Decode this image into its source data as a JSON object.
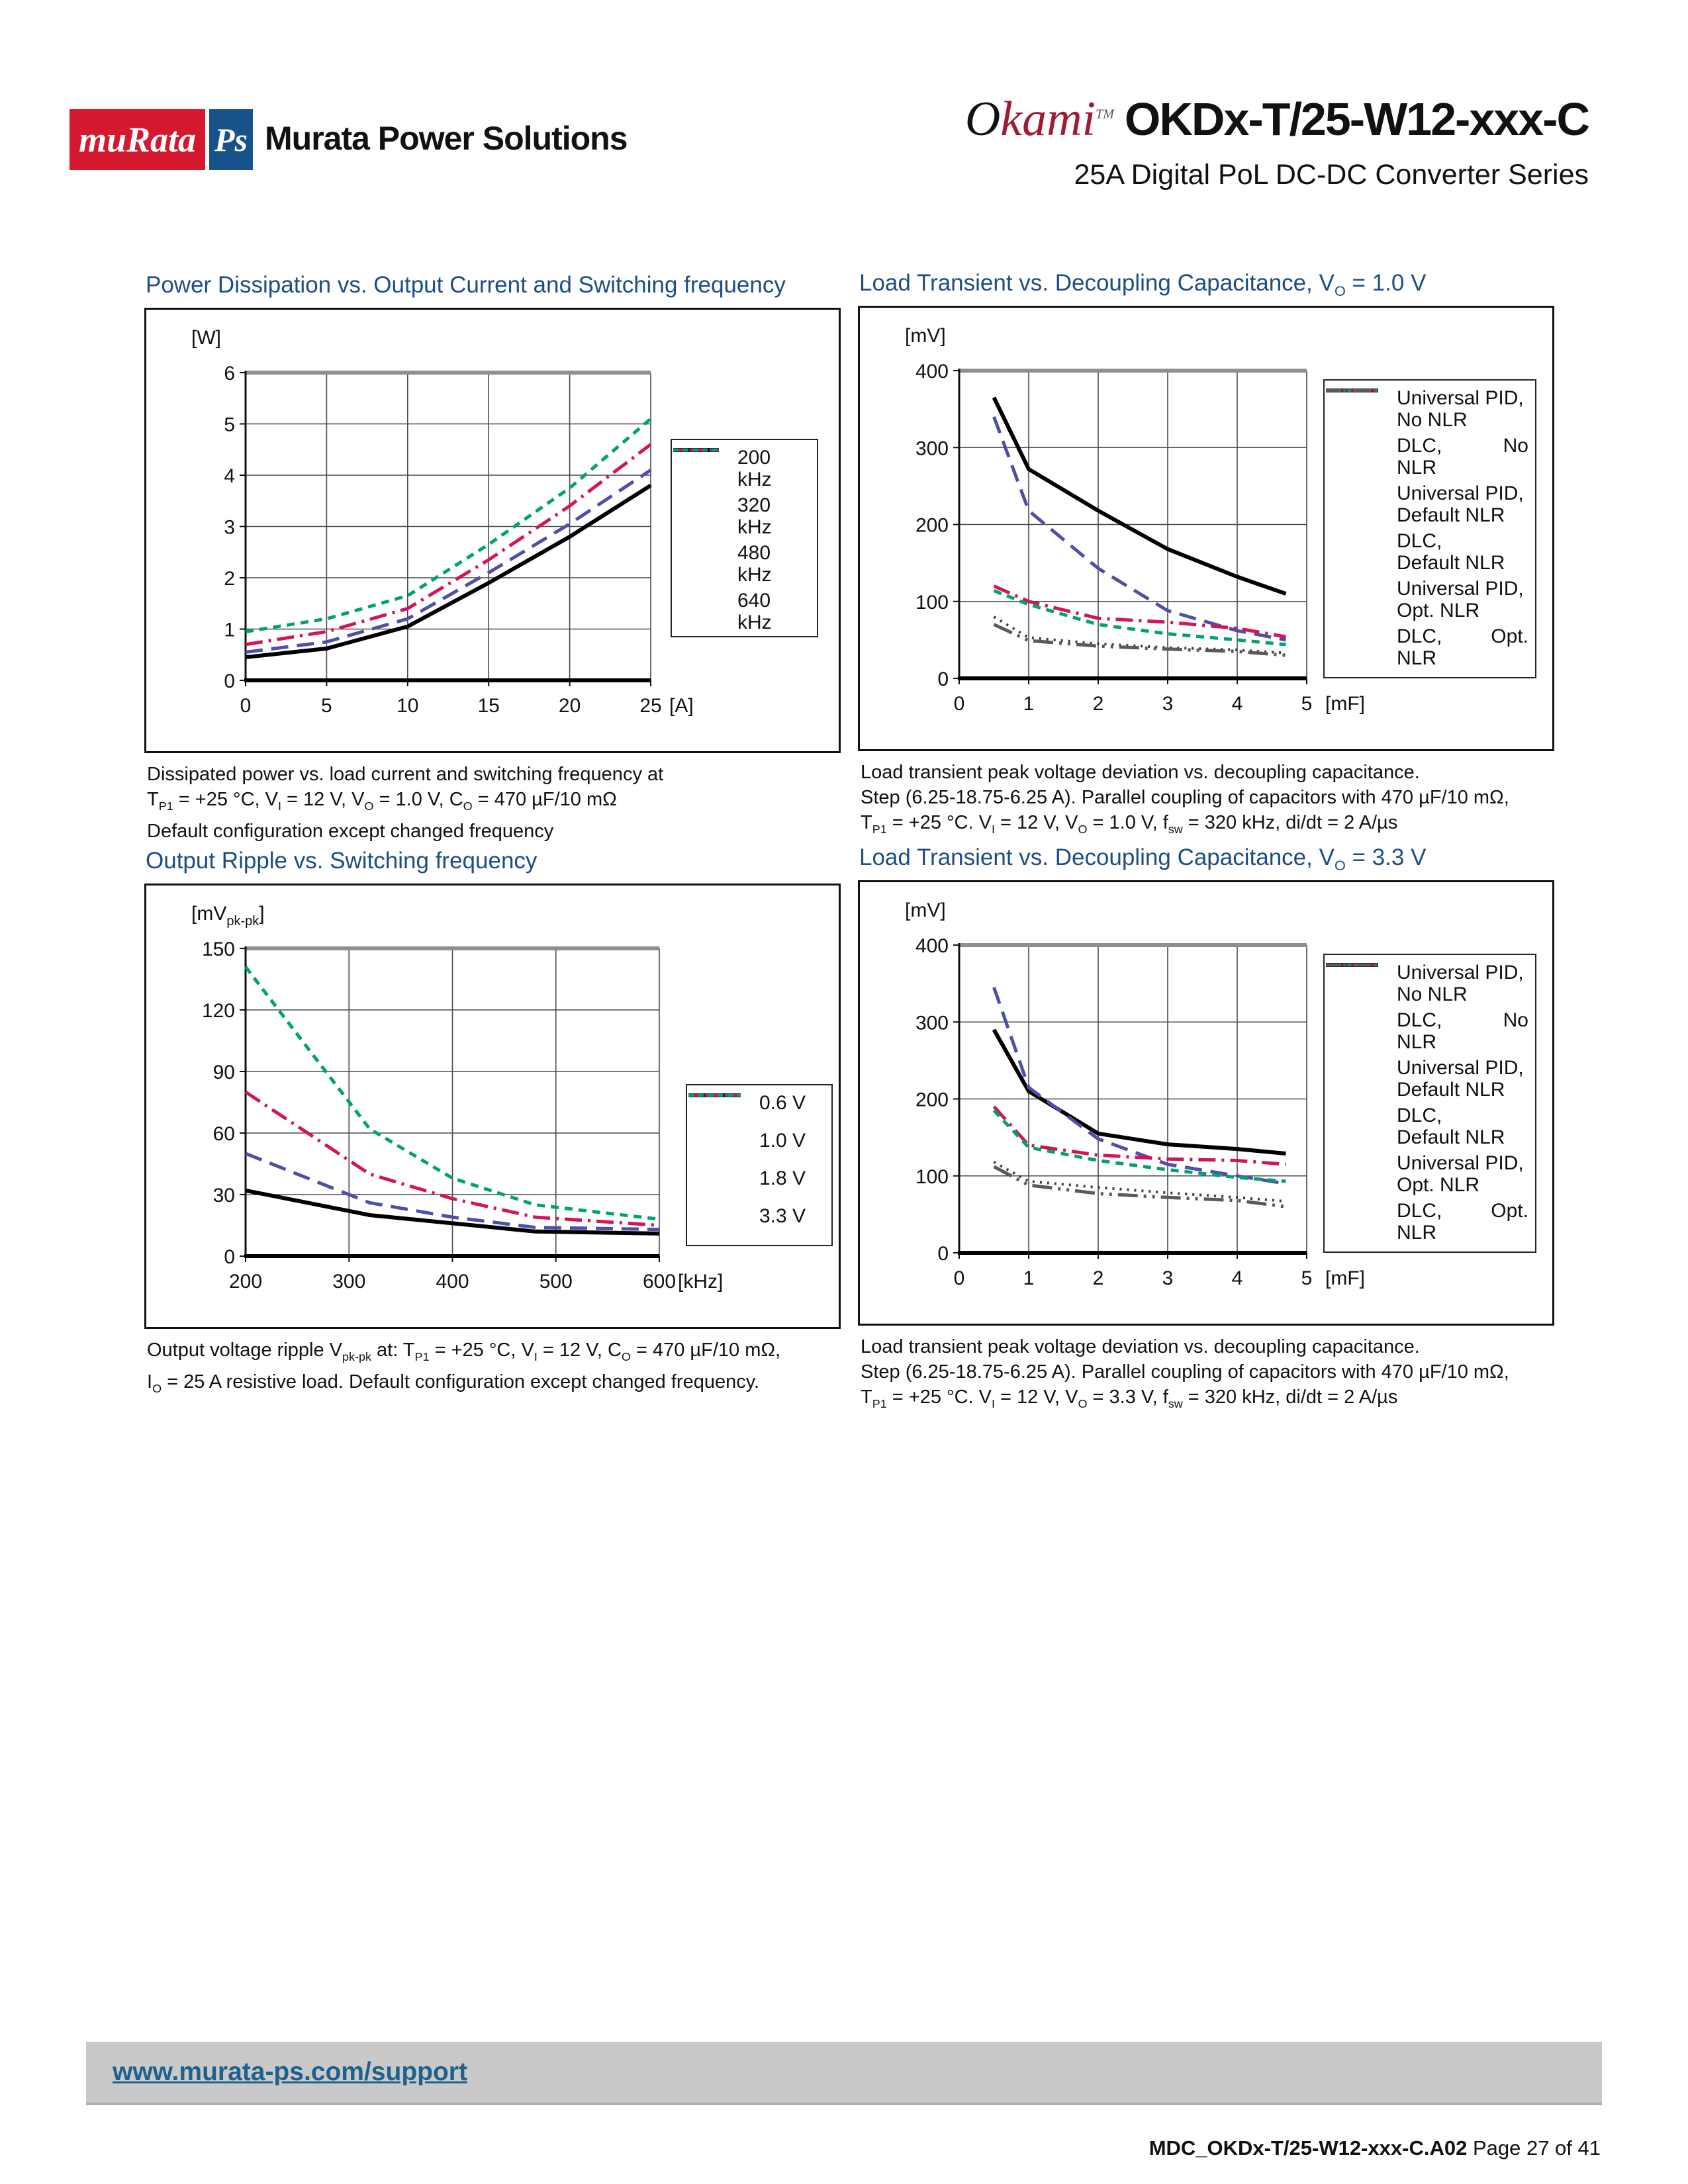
{
  "header": {
    "logo_murata": "muRata",
    "logo_ps": "Ps",
    "company": "Murata Power Solutions",
    "brand_o": "O",
    "brand_rest": "kami",
    "brand_tm": "TM",
    "product": "OKDx-T/25-W12-xxx-C",
    "series": "25A Digital PoL DC-DC Converter Series"
  },
  "footer": {
    "link": "www.murata-ps.com/support",
    "doc": "MDC_OKDx-T/25-W12-xxx-C.A02",
    "page": "Page 27 of 41"
  },
  "line_styles": {
    "solid": {
      "color": "#000000",
      "dash": "",
      "width": 6
    },
    "longdash": {
      "color": "#4f4fa8",
      "dash": "26 13",
      "width": 5
    },
    "dashdot": {
      "color": "#d4145a",
      "dash": "26 9 4 9",
      "width": 5
    },
    "shortdash": {
      "color": "#00a173",
      "dash": "12 9",
      "width": 5
    },
    "dotted": {
      "color": "#3a3a3a",
      "dash": "3 8",
      "width": 4
    },
    "dashdotdot": {
      "color": "#5a5a5a",
      "dash": "30 9 4 9 4 9",
      "width": 5
    }
  },
  "chart_data": [
    {
      "type": "line",
      "title": "Power Dissipation vs. Output Current and Switching frequency",
      "y_unit": "[W]",
      "x_unit": "[A]",
      "xlim": [
        0,
        25
      ],
      "ylim": [
        0,
        6
      ],
      "x_ticks": [
        0,
        5,
        10,
        15,
        20,
        25
      ],
      "y_ticks": [
        0,
        1,
        2,
        3,
        4,
        5,
        6
      ],
      "series": [
        {
          "label_lines": [
            "200",
            "kHz"
          ],
          "style": "solid",
          "x": [
            0,
            5,
            10,
            15,
            20,
            25
          ],
          "y": [
            0.45,
            0.62,
            1.05,
            1.9,
            2.8,
            3.8
          ]
        },
        {
          "label_lines": [
            "320",
            "kHz"
          ],
          "style": "longdash",
          "x": [
            0,
            5,
            10,
            15,
            20,
            25
          ],
          "y": [
            0.55,
            0.75,
            1.2,
            2.1,
            3.05,
            4.1
          ]
        },
        {
          "label_lines": [
            "480",
            "kHz"
          ],
          "style": "dashdot",
          "x": [
            0,
            5,
            10,
            15,
            20,
            25
          ],
          "y": [
            0.7,
            0.95,
            1.4,
            2.35,
            3.4,
            4.6
          ]
        },
        {
          "label_lines": [
            "640",
            "kHz"
          ],
          "style": "shortdash",
          "x": [
            0,
            5,
            10,
            15,
            20,
            25
          ],
          "y": [
            0.95,
            1.2,
            1.65,
            2.65,
            3.75,
            5.1
          ]
        }
      ],
      "caption_lines": [
        "Dissipated power vs. load current and switching frequency at",
        "T~P1~ = +25 °C, V~I~ = 12 V, V~O~ = 1.0 V, C~O~ = 470 µF/10 mΩ",
        "Default configuration except changed frequency"
      ]
    },
    {
      "type": "line",
      "title": "Load Transient vs. Decoupling Capacitance, V~O~ = 1.0 V",
      "y_unit": "[mV]",
      "x_unit": "[mF]",
      "xlim": [
        0,
        5
      ],
      "ylim": [
        0,
        400
      ],
      "x_ticks": [
        0,
        1,
        2,
        3,
        4,
        5
      ],
      "y_ticks": [
        0,
        100,
        200,
        300,
        400
      ],
      "series": [
        {
          "label_lines": [
            "Universal PID,",
            "No NLR"
          ],
          "style": "solid",
          "x": [
            0.5,
            1,
            2,
            3,
            4,
            4.7
          ],
          "y": [
            365,
            272,
            218,
            168,
            132,
            110
          ]
        },
        {
          "label_lines": [
            "DLC,|No",
            "NLR"
          ],
          "style": "longdash",
          "x": [
            0.5,
            1,
            2,
            3,
            4,
            4.7
          ],
          "y": [
            340,
            218,
            143,
            88,
            62,
            50
          ]
        },
        {
          "label_lines": [
            "Universal PID,",
            "Default NLR"
          ],
          "style": "dashdot",
          "x": [
            0.5,
            1,
            2,
            3,
            4,
            4.7
          ],
          "y": [
            120,
            100,
            78,
            73,
            65,
            54
          ]
        },
        {
          "label_lines": [
            "DLC,",
            "Default NLR"
          ],
          "style": "shortdash",
          "x": [
            0.5,
            1,
            2,
            3,
            4,
            4.7
          ],
          "y": [
            114,
            96,
            70,
            58,
            50,
            44
          ]
        },
        {
          "label_lines": [
            "Universal PID,",
            "Opt. NLR"
          ],
          "style": "dotted",
          "x": [
            0.5,
            1,
            2,
            3,
            4,
            4.7
          ],
          "y": [
            80,
            53,
            45,
            40,
            37,
            33
          ]
        },
        {
          "label_lines": [
            "DLC,|Opt.",
            "NLR"
          ],
          "style": "dashdotdot",
          "x": [
            0.5,
            1,
            2,
            3,
            4,
            4.7
          ],
          "y": [
            70,
            49,
            42,
            38,
            35,
            30
          ]
        }
      ],
      "caption_lines": [
        "Load transient peak voltage deviation vs. decoupling capacitance.",
        "Step (6.25-18.75-6.25 A). Parallel coupling of capacitors with 470 µF/10 mΩ,",
        "T~P1~ = +25 °C. V~I~ = 12 V, V~O~ = 1.0 V, f~sw~ = 320 kHz, di/dt = 2 A/µs"
      ]
    },
    {
      "type": "line",
      "title": "Output Ripple vs. Switching frequency",
      "y_unit": "[mV~pk-pk~]",
      "x_unit": "[kHz]",
      "xlim": [
        200,
        600
      ],
      "ylim": [
        0,
        150
      ],
      "x_ticks": [
        200,
        300,
        400,
        500,
        600
      ],
      "y_ticks": [
        0,
        30,
        60,
        90,
        120,
        150
      ],
      "series": [
        {
          "label_lines": [
            "0.6 V"
          ],
          "style": "solid",
          "x": [
            200,
            320,
            400,
            480,
            600
          ],
          "y": [
            32,
            20,
            16,
            12,
            11
          ]
        },
        {
          "label_lines": [
            "1.0 V"
          ],
          "style": "longdash",
          "x": [
            200,
            320,
            400,
            480,
            600
          ],
          "y": [
            50,
            26,
            19,
            14,
            13
          ]
        },
        {
          "label_lines": [
            "1.8 V"
          ],
          "style": "dashdot",
          "x": [
            200,
            320,
            400,
            480,
            600
          ],
          "y": [
            80,
            40,
            28,
            19,
            15
          ]
        },
        {
          "label_lines": [
            "3.3 V"
          ],
          "style": "shortdash",
          "x": [
            200,
            320,
            400,
            480,
            600
          ],
          "y": [
            141,
            62,
            38,
            25,
            18
          ]
        }
      ],
      "caption_lines": [
        "Output voltage ripple V~pk-pk~ at: T~P1~ = +25 °C, V~I~ = 12 V, C~O~ = 470 µF/10 mΩ,",
        "I~O~ = 25 A resistive load. Default configuration except changed frequency."
      ]
    },
    {
      "type": "line",
      "title": "Load Transient vs. Decoupling Capacitance, V~O~ = 3.3 V",
      "y_unit": "[mV]",
      "x_unit": "[mF]",
      "xlim": [
        0,
        5
      ],
      "ylim": [
        0,
        400
      ],
      "x_ticks": [
        0,
        1,
        2,
        3,
        4,
        5
      ],
      "y_ticks": [
        0,
        100,
        200,
        300,
        400
      ],
      "series": [
        {
          "label_lines": [
            "Universal PID,",
            "No NLR"
          ],
          "style": "solid",
          "x": [
            0.5,
            1,
            2,
            3,
            4,
            4.7
          ],
          "y": [
            290,
            210,
            155,
            141,
            135,
            129
          ]
        },
        {
          "label_lines": [
            "DLC,|No",
            "NLR"
          ],
          "style": "longdash",
          "x": [
            0.5,
            1,
            2,
            3,
            4,
            4.7
          ],
          "y": [
            345,
            215,
            148,
            115,
            100,
            90
          ]
        },
        {
          "label_lines": [
            "Universal PID,",
            "Default NLR"
          ],
          "style": "dashdot",
          "x": [
            0.5,
            1,
            2,
            3,
            4,
            4.7
          ],
          "y": [
            190,
            140,
            127,
            122,
            120,
            115
          ]
        },
        {
          "label_lines": [
            "DLC,",
            "Default NLR"
          ],
          "style": "shortdash",
          "x": [
            0.5,
            1,
            2,
            3,
            4,
            4.7
          ],
          "y": [
            185,
            137,
            120,
            108,
            98,
            93
          ]
        },
        {
          "label_lines": [
            "Universal PID,",
            "Opt. NLR"
          ],
          "style": "dotted",
          "x": [
            0.5,
            1,
            2,
            3,
            4,
            4.7
          ],
          "y": [
            118,
            93,
            85,
            78,
            72,
            67
          ]
        },
        {
          "label_lines": [
            "DLC,|Opt.",
            "NLR"
          ],
          "style": "dashdotdot",
          "x": [
            0.5,
            1,
            2,
            3,
            4,
            4.7
          ],
          "y": [
            112,
            88,
            77,
            72,
            68,
            60
          ]
        }
      ],
      "caption_lines": [
        "Load transient peak voltage deviation vs. decoupling capacitance.",
        "Step (6.25-18.75-6.25 A). Parallel coupling of capacitors with 470 µF/10 mΩ,",
        "T~P1~ = +25 °C. V~I~ = 12 V, V~O~ = 3.3 V, f~sw~ = 320 kHz, di/dt = 2 A/µs"
      ]
    }
  ]
}
